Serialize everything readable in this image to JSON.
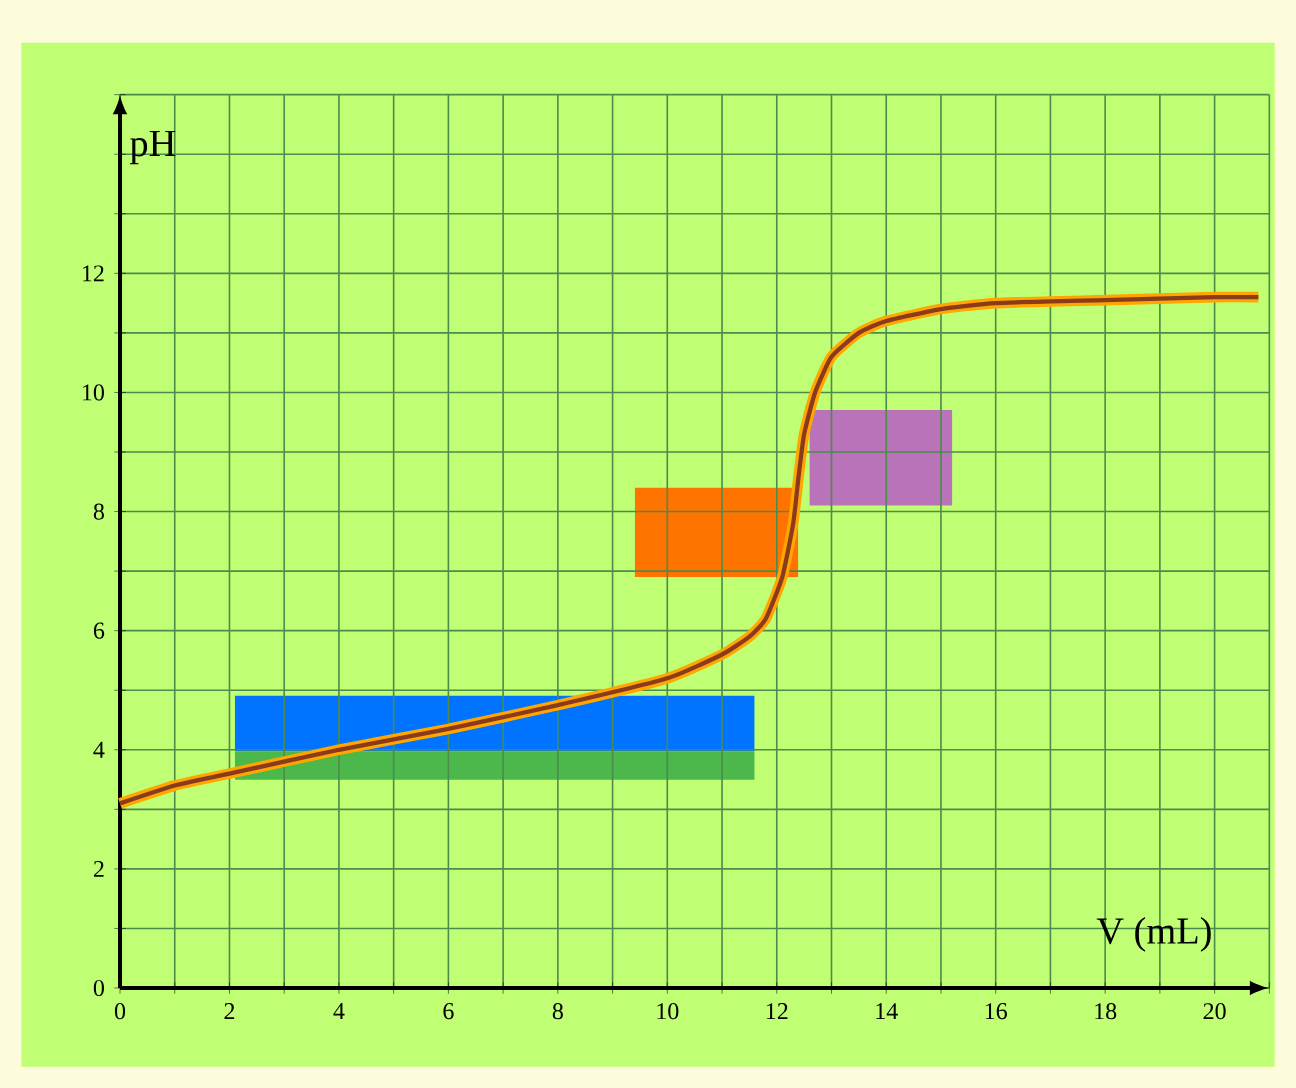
{
  "chart_data": {
    "type": "line",
    "xlabel": "V (mL)",
    "ylabel": "pH",
    "x": [
      0,
      1,
      2,
      4,
      6,
      8,
      10,
      11,
      11.5,
      11.8,
      12.1,
      12.3,
      12.4,
      12.5,
      12.7,
      13,
      13.5,
      14,
      15,
      16,
      18,
      20,
      20.8
    ],
    "series": [
      {
        "color": "#8b3a1a",
        "values": [
          3.1,
          3.4,
          3.6,
          4.0,
          4.35,
          4.75,
          5.2,
          5.6,
          5.9,
          6.2,
          6.9,
          7.8,
          8.6,
          9.3,
          10.0,
          10.6,
          11.0,
          11.2,
          11.4,
          11.5,
          11.55,
          11.6,
          11.6
        ]
      }
    ],
    "xlim": [
      0,
      21
    ],
    "ylim": [
      0,
      15
    ],
    "xticks": [
      0,
      {
        "value": 1,
        "label": null
      },
      2,
      {
        "value": 3,
        "label": null
      },
      4,
      {
        "value": 5,
        "label": null
      },
      6,
      {
        "value": 7,
        "label": null
      },
      8,
      {
        "value": 9,
        "label": null
      },
      10,
      {
        "value": 11,
        "label": null
      },
      12,
      {
        "value": 13,
        "label": null
      },
      14,
      {
        "value": 15,
        "label": null
      },
      16,
      {
        "value": 17,
        "label": null
      },
      18,
      {
        "value": 19,
        "label": null
      },
      20,
      {
        "value": 21,
        "label": null
      }
    ],
    "yticks": [
      0,
      {
        "value": 1,
        "label": null
      },
      2,
      {
        "value": 3,
        "label": null
      },
      4,
      {
        "value": 5,
        "label": null
      },
      6,
      {
        "value": 7,
        "label": null
      },
      8,
      {
        "value": 9,
        "label": null
      },
      10,
      {
        "value": 11,
        "label": null
      },
      12,
      {
        "value": 13,
        "label": null
      },
      {
        "value": 14,
        "label": null
      },
      {
        "value": 15,
        "label": null
      }
    ],
    "grid": true,
    "marker": "none",
    "line_style": "solid"
  }
}
